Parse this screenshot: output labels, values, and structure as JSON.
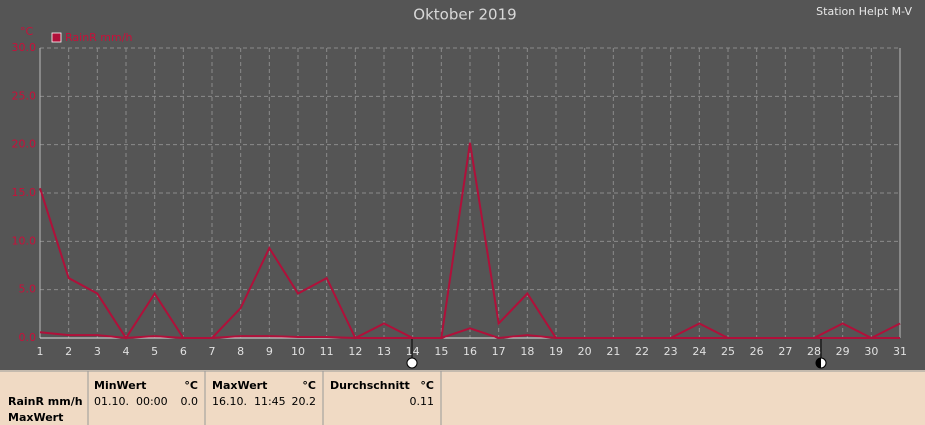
{
  "chart_data": {
    "type": "line",
    "title": "Oktober 2019",
    "subtitle": "Station Helpt M-V",
    "y_label": "°C",
    "x": [
      1,
      2,
      3,
      4,
      5,
      6,
      7,
      8,
      9,
      10,
      11,
      12,
      13,
      14,
      15,
      16,
      17,
      18,
      19,
      20,
      21,
      22,
      23,
      24,
      25,
      26,
      27,
      28,
      29,
      30,
      31
    ],
    "series": [
      {
        "name": "RainR mm/h",
        "color": "#b0103a",
        "values": [
          15.5,
          6.2,
          4.6,
          0,
          4.6,
          0,
          0,
          3.1,
          9.3,
          4.6,
          6.2,
          0,
          1.5,
          0,
          0,
          20.2,
          1.5,
          4.6,
          0,
          0,
          0,
          0,
          0,
          1.5,
          0,
          0,
          0,
          0,
          1.5,
          0,
          1.5
        ]
      },
      {
        "color": "#b0103a",
        "values": [
          0.6,
          0.3,
          0.3,
          0,
          0.2,
          0,
          0,
          0.2,
          0.2,
          0.1,
          0.1,
          0,
          0,
          0,
          0,
          1.0,
          0,
          0.3,
          0,
          0,
          0,
          0,
          0,
          0,
          0,
          0,
          0,
          0,
          0,
          0,
          0
        ]
      }
    ],
    "xlim": [
      1,
      31
    ],
    "xticks": [
      1,
      2,
      3,
      4,
      5,
      6,
      7,
      8,
      9,
      10,
      11,
      12,
      13,
      14,
      15,
      16,
      17,
      18,
      19,
      20,
      21,
      22,
      23,
      24,
      25,
      26,
      27,
      28,
      29,
      30,
      31
    ],
    "ylim": [
      0,
      30
    ],
    "yticks": [
      {
        "value": 0,
        "label": "0.0"
      },
      {
        "value": 5,
        "label": "5.0"
      },
      {
        "value": 10,
        "label": "10.0"
      },
      {
        "value": 15,
        "label": "15.0"
      },
      {
        "value": 20,
        "label": "20.0"
      },
      {
        "value": 25,
        "label": "25.0"
      },
      {
        "value": 30,
        "label": "30.0"
      }
    ],
    "grid": true,
    "legend": "top-left"
  },
  "stats": {
    "series": "RainR mm/h",
    "kind": "MaxWert",
    "unit": "°C",
    "columns": [
      {
        "title": "MinWert",
        "time": "01.10.  00:00",
        "value": "0.0"
      },
      {
        "title": "MaxWert",
        "time": "16.10.  11:45",
        "value": "20.2"
      },
      {
        "title": "Durchschnitt",
        "value": "0.11"
      }
    ]
  }
}
